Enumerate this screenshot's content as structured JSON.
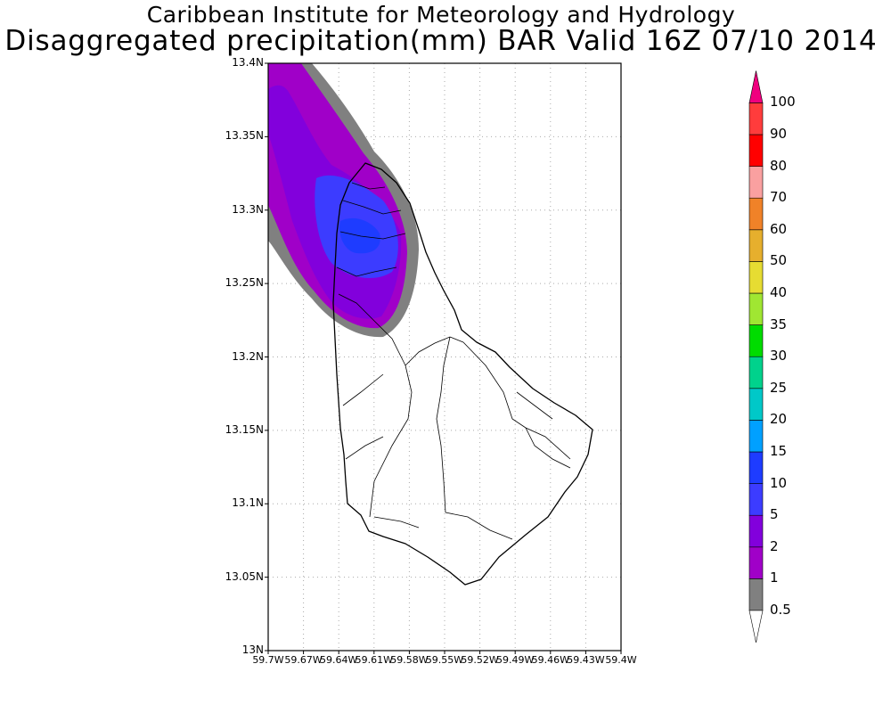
{
  "title": {
    "line1": "Caribbean Institute for Meteorology and Hydrology",
    "line2": "Disaggregated precipitation(mm) BAR Valid 16Z 07/10 2014"
  },
  "axes": {
    "y_ticks": [
      "13.4N",
      "13.35N",
      "13.3N",
      "13.25N",
      "13.2N",
      "13.15N",
      "13.1N",
      "13.05N",
      "13N"
    ],
    "x_ticks": [
      "59.7W",
      "59.67W",
      "59.64W",
      "59.61W",
      "59.58W",
      "59.55W",
      "59.52W",
      "59.49W",
      "59.46W",
      "59.43W",
      "59.4W"
    ],
    "lat_range": [
      13.0,
      13.4
    ],
    "lon_range": [
      -59.7,
      -59.4
    ],
    "grid": "dotted"
  },
  "legend": {
    "orientation": "vertical",
    "placement": "right",
    "levels": [
      "0.5",
      "1",
      "2",
      "5",
      "10",
      "15",
      "20",
      "25",
      "30",
      "35",
      "40",
      "50",
      "60",
      "70",
      "80",
      "90",
      "100"
    ],
    "colors": [
      "#808080",
      "#a000c8",
      "#8200dc",
      "#3c3cff",
      "#1e3cff",
      "#00a0ff",
      "#00c8c8",
      "#00d28c",
      "#00dc00",
      "#a0e632",
      "#e6dc32",
      "#e6af2d",
      "#f08228",
      "#faa0a0",
      "#ff0000",
      "#ff3c3c",
      "#f0007f"
    ]
  },
  "precip_levels_shown": [
    "0.5",
    "1",
    "2",
    "5",
    "10"
  ]
}
